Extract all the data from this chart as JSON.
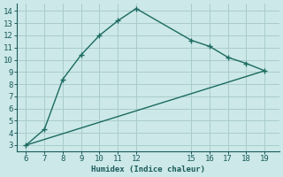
{
  "xlabel": "Humidex (Indice chaleur)",
  "background_color": "#cce8e8",
  "grid_color": "#aacccc",
  "line_color": "#1a6a60",
  "curve1_x": [
    6,
    7,
    8,
    9,
    10,
    11,
    12,
    15,
    16,
    17,
    18,
    19
  ],
  "curve1_y": [
    3.0,
    4.3,
    8.4,
    10.4,
    12.0,
    13.2,
    14.2,
    11.6,
    11.1,
    10.2,
    9.7,
    9.1
  ],
  "curve2_x": [
    6,
    19
  ],
  "curve2_y": [
    3.0,
    9.1
  ],
  "xlim": [
    5.5,
    19.8
  ],
  "ylim": [
    2.5,
    14.6
  ],
  "xticks": [
    6,
    7,
    8,
    9,
    10,
    11,
    12,
    15,
    16,
    17,
    18,
    19
  ],
  "yticks": [
    3,
    4,
    5,
    6,
    7,
    8,
    9,
    10,
    11,
    12,
    13,
    14
  ],
  "font_color": "#1a5a5a",
  "marker": "+",
  "markersize": 5,
  "linewidth": 1.0,
  "tick_labelsize": 6.5
}
